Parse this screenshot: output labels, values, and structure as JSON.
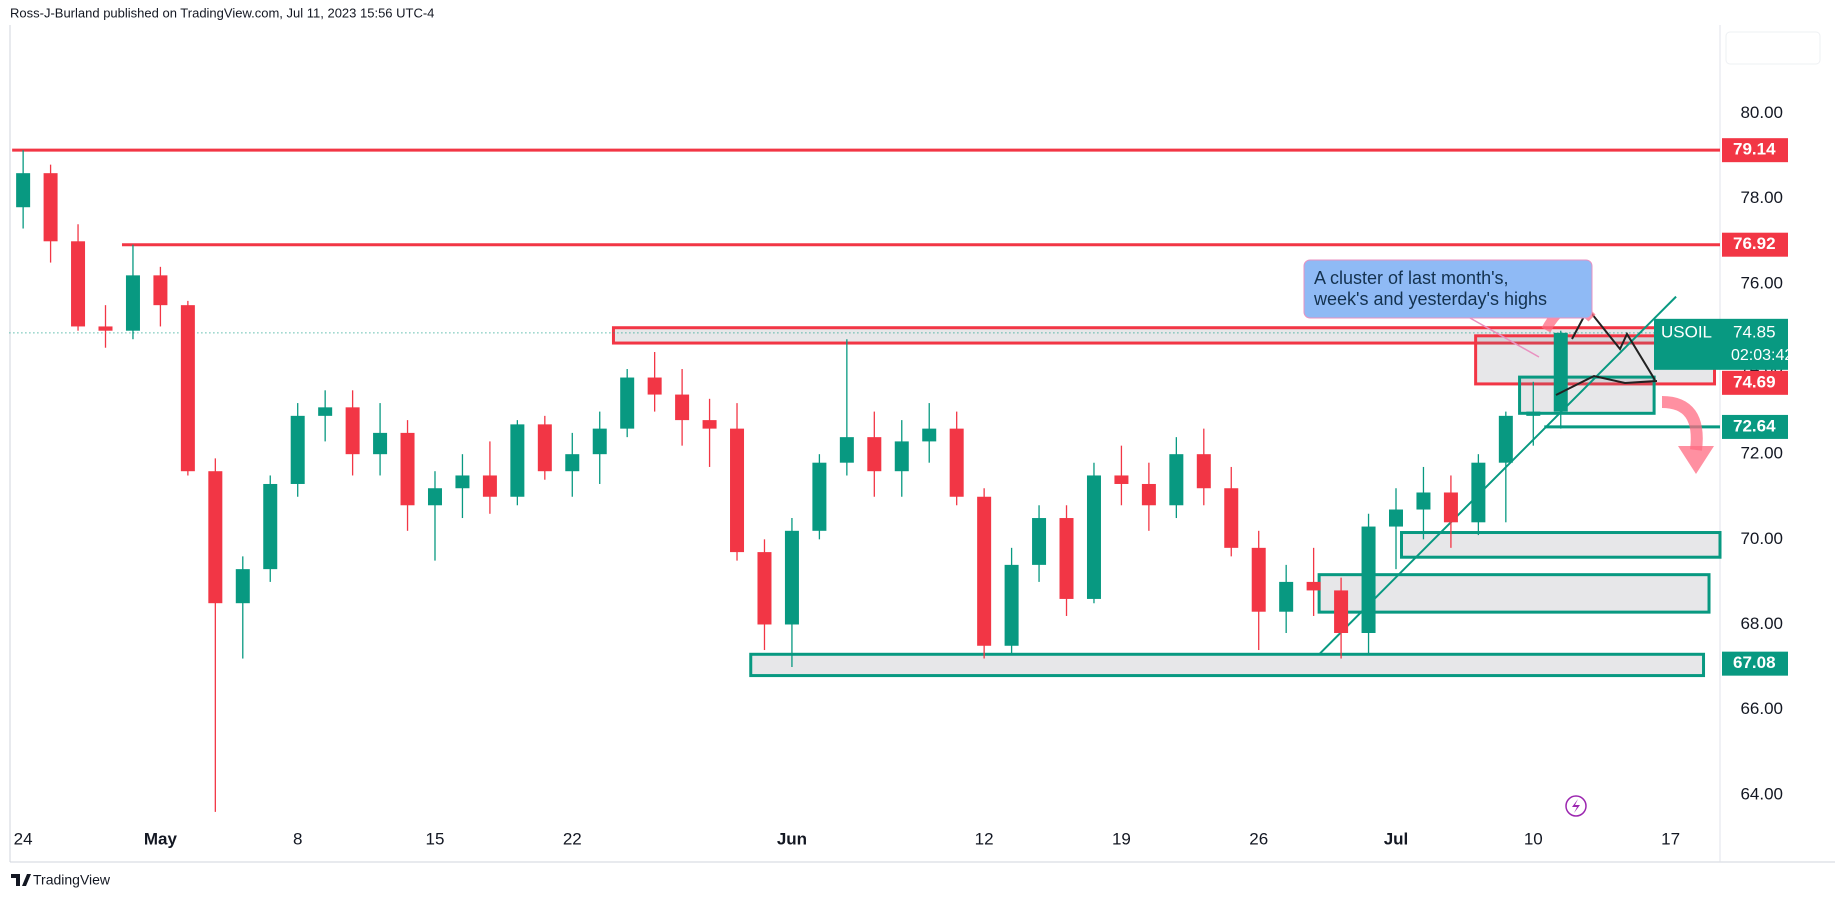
{
  "chart_data": {
    "type": "candlestick",
    "header": "Ross-J-Burland published on TradingView.com, Jul 11, 2023 15:56 UTC-4",
    "footer": "TradingView",
    "xlim": [
      -0.5,
      61.8
    ],
    "ylim": [
      63.22,
      82.08
    ],
    "grid": false,
    "xticks": [
      {
        "value": 0,
        "label": "24"
      },
      {
        "value": 5,
        "label": "May"
      },
      {
        "value": 10,
        "label": "8"
      },
      {
        "value": 15,
        "label": "15"
      },
      {
        "value": 20,
        "label": "22"
      },
      {
        "value": 28,
        "label": "Jun"
      },
      {
        "value": 35,
        "label": "12"
      },
      {
        "value": 40,
        "label": "19"
      },
      {
        "value": 45,
        "label": "26"
      },
      {
        "value": 50,
        "label": "Jul"
      },
      {
        "value": 55,
        "label": "10"
      },
      {
        "value": 60,
        "label": "17"
      }
    ],
    "yticks": [
      {
        "value": 64,
        "label": "64.00"
      },
      {
        "value": 66,
        "label": "66.00"
      },
      {
        "value": 68,
        "label": "68.00"
      },
      {
        "value": 70,
        "label": "70.00"
      },
      {
        "value": 72,
        "label": "72.00"
      },
      {
        "value": 74,
        "label": "74.00"
      },
      {
        "value": 76,
        "label": "76.00"
      },
      {
        "value": 78,
        "label": "78.00"
      },
      {
        "value": 80,
        "label": "80.00"
      }
    ],
    "series": [
      {
        "name": "USOIL",
        "countdown": "02:03:42",
        "up_color": "#089981",
        "down_color": "#f23645",
        "x": [
          0,
          1,
          2,
          3,
          4,
          5,
          6,
          7,
          8,
          9,
          10,
          11,
          12,
          13,
          14,
          15,
          16,
          17,
          18,
          19,
          20,
          21,
          22,
          23,
          24,
          25,
          26,
          27,
          28,
          29,
          30,
          31,
          32,
          33,
          34,
          35,
          36,
          37,
          38,
          39,
          40,
          41,
          42,
          43,
          44,
          45,
          46,
          47,
          48,
          49,
          50,
          51,
          52,
          53,
          54,
          55,
          56
        ],
        "open": [
          77.8,
          78.6,
          77.0,
          75.0,
          74.9,
          76.2,
          75.5,
          71.6,
          68.5,
          69.3,
          71.3,
          72.9,
          73.1,
          72.0,
          72.5,
          70.8,
          71.2,
          71.5,
          71.0,
          72.7,
          71.6,
          72.0,
          72.6,
          73.8,
          73.4,
          72.8,
          72.6,
          69.7,
          68.0,
          70.2,
          71.8,
          72.4,
          71.6,
          72.3,
          72.6,
          71.0,
          67.5,
          69.4,
          70.5,
          68.6,
          71.5,
          71.3,
          70.8,
          72.0,
          71.2,
          69.8,
          68.3,
          69.0,
          68.8,
          67.8,
          70.3,
          70.7,
          71.1,
          70.4,
          71.8,
          72.9,
          73.0
        ],
        "high": [
          79.14,
          78.8,
          77.4,
          75.5,
          76.92,
          76.4,
          75.6,
          71.9,
          69.6,
          71.5,
          73.2,
          73.5,
          73.5,
          73.2,
          72.8,
          71.6,
          72.0,
          72.3,
          72.8,
          72.9,
          72.5,
          73.0,
          74.0,
          74.4,
          74.0,
          73.3,
          73.2,
          70.0,
          70.5,
          72.0,
          74.7,
          73.0,
          72.8,
          73.2,
          73.0,
          71.2,
          69.8,
          70.8,
          70.8,
          71.8,
          72.2,
          71.8,
          72.4,
          72.6,
          71.7,
          70.2,
          69.4,
          69.8,
          69.1,
          70.6,
          71.2,
          71.7,
          71.5,
          72.0,
          73.0,
          73.7,
          74.9
        ],
        "low": [
          77.3,
          76.5,
          74.9,
          74.5,
          74.7,
          75.0,
          71.5,
          63.6,
          67.2,
          69.0,
          71.0,
          72.3,
          71.5,
          71.5,
          70.2,
          69.5,
          70.5,
          70.6,
          70.8,
          71.4,
          71.0,
          71.3,
          72.4,
          73.0,
          72.2,
          71.7,
          69.5,
          67.4,
          67.0,
          70.0,
          71.5,
          71.0,
          71.0,
          71.8,
          70.8,
          67.2,
          67.3,
          69.0,
          68.2,
          68.5,
          70.8,
          70.2,
          70.5,
          70.8,
          69.6,
          67.4,
          67.8,
          68.2,
          67.2,
          67.3,
          69.3,
          70.0,
          69.8,
          70.1,
          70.4,
          72.2,
          72.6
        ],
        "close": [
          78.6,
          77.0,
          75.0,
          74.9,
          76.2,
          75.5,
          71.6,
          68.5,
          69.3,
          71.3,
          72.9,
          73.1,
          72.0,
          72.5,
          70.8,
          71.2,
          71.5,
          71.0,
          72.7,
          71.6,
          72.0,
          72.6,
          73.8,
          73.4,
          72.8,
          72.6,
          69.7,
          68.0,
          70.2,
          71.8,
          72.4,
          71.6,
          72.3,
          72.6,
          71.0,
          67.5,
          69.4,
          70.5,
          68.6,
          71.5,
          71.3,
          70.8,
          72.0,
          71.2,
          69.8,
          68.3,
          69.0,
          68.8,
          67.8,
          70.3,
          70.7,
          71.1,
          70.4,
          71.8,
          72.9,
          73.0,
          74.85
        ]
      }
    ],
    "levels": [
      {
        "value": 79.14,
        "color": "#f23645",
        "x": [
          -0.4,
          61.8
        ]
      },
      {
        "value": 76.92,
        "color": "#f23645",
        "x": [
          3.6,
          61.8
        ]
      },
      {
        "value": 74.69,
        "color": "#f23645"
      },
      {
        "value": 72.64,
        "color": "#089981",
        "x": [
          55.4,
          61.8
        ]
      },
      {
        "value": 67.08,
        "color": "#089981"
      }
    ],
    "zones": [
      {
        "x": [
          21.5,
          61.8
        ],
        "y": [
          74.61,
          74.97
        ],
        "color": "#f23645"
      },
      {
        "x": [
          52.9,
          61.6
        ],
        "y": [
          73.65,
          74.78
        ],
        "color": "#f23645"
      },
      {
        "x": [
          54.5,
          59.4
        ],
        "y": [
          72.96,
          73.81
        ],
        "color": "#089981"
      },
      {
        "x": [
          50.2,
          61.8
        ],
        "y": [
          69.58,
          70.16
        ],
        "color": "#089981"
      },
      {
        "x": [
          47.2,
          61.4
        ],
        "y": [
          68.29,
          69.17
        ],
        "color": "#089981"
      },
      {
        "x": [
          26.5,
          61.2
        ],
        "y": [
          66.8,
          67.3
        ],
        "color": "#089981"
      }
    ],
    "trendlines": [
      {
        "x": [
          47.2,
          60.2
        ],
        "y": [
          67.3,
          75.7
        ],
        "color": "#089981"
      }
    ],
    "annotation": {
      "lines": [
        "A cluster of last month's,",
        "week's and yesterday's highs"
      ]
    }
  }
}
